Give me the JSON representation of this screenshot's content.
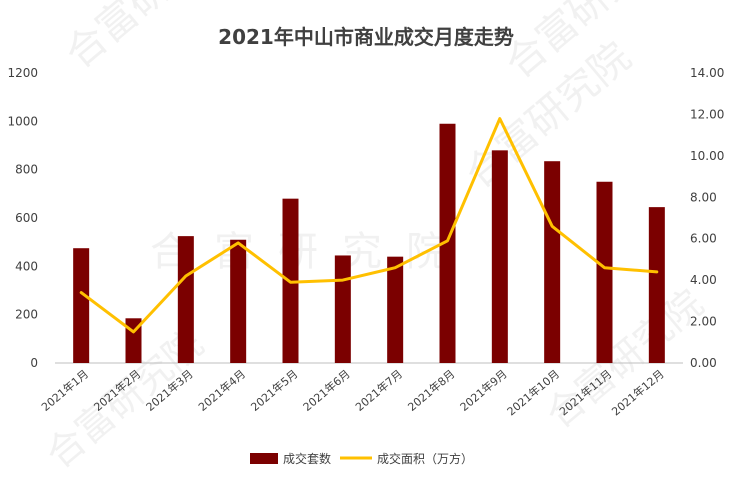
{
  "chart_data": {
    "type": "bar",
    "title": "2021年中山市商业成交月度走势",
    "categories": [
      "2021年1月",
      "2021年2月",
      "2021年3月",
      "2021年4月",
      "2021年5月",
      "2021年6月",
      "2021年7月",
      "2021年8月",
      "2021年9月",
      "2021年10月",
      "2021年11月",
      "2021年12月"
    ],
    "series": [
      {
        "name": "成交套数",
        "type": "bar",
        "axis": "left",
        "color": "#7b0000",
        "values": [
          475,
          185,
          525,
          510,
          680,
          445,
          440,
          990,
          880,
          835,
          750,
          645
        ]
      },
      {
        "name": "成交面积（万方）",
        "type": "line",
        "axis": "right",
        "color": "#ffc000",
        "values": [
          3.4,
          1.5,
          4.2,
          5.8,
          3.9,
          4.0,
          4.6,
          5.9,
          11.8,
          6.6,
          4.6,
          4.4
        ]
      }
    ],
    "y_left": {
      "min": 0,
      "max": 1200,
      "ticks": [
        "0",
        "200",
        "400",
        "600",
        "800",
        "1000",
        "1200"
      ]
    },
    "y_right": {
      "min": 0,
      "max": 14,
      "ticks": [
        "0.00",
        "2.00",
        "4.00",
        "6.00",
        "8.00",
        "10.00",
        "12.00",
        "14.00"
      ]
    },
    "grid": false,
    "legend_position": "bottom"
  },
  "watermark": {
    "text": "合富研究院"
  }
}
